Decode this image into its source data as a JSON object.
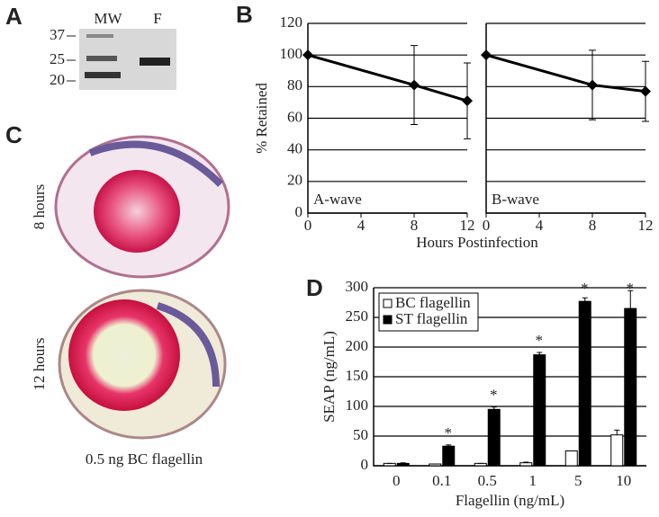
{
  "panel_labels": [
    "A",
    "B",
    "C",
    "D"
  ],
  "gel": {
    "lanes": [
      "MW",
      "F"
    ],
    "markers": [
      "37",
      "25",
      "20"
    ]
  },
  "histology": {
    "labels": [
      "8 hours",
      "12 hours"
    ],
    "caption": "0.5 ng BC flagellin"
  },
  "chart_data": [
    {
      "type": "line",
      "ylabel": "% Retained",
      "xlabel": "Hours Postinfection",
      "annotation": "A-wave",
      "x": [
        0,
        8,
        12
      ],
      "xlim": [
        0,
        12
      ],
      "xticks": [
        0,
        4,
        8,
        12
      ],
      "ylim": [
        0,
        120
      ],
      "yticks": [
        0,
        20,
        40,
        60,
        80,
        100,
        120
      ],
      "grid": true,
      "series": [
        {
          "name": "A-wave",
          "color": "#000000",
          "values": [
            100,
            81,
            71
          ],
          "errors": [
            null,
            25,
            24
          ]
        }
      ]
    },
    {
      "type": "line",
      "annotation": "B-wave",
      "x": [
        0,
        8,
        12
      ],
      "xlim": [
        0,
        12
      ],
      "xticks": [
        0,
        4,
        8,
        12
      ],
      "ylim": [
        0,
        120
      ],
      "yticks": [
        0,
        20,
        40,
        60,
        80,
        100,
        120
      ],
      "grid": true,
      "series": [
        {
          "name": "B-wave",
          "color": "#000000",
          "values": [
            100,
            81,
            77
          ],
          "errors": [
            null,
            22,
            19
          ]
        }
      ]
    },
    {
      "type": "bar",
      "ylabel": "SEAP (ng/mL)",
      "xlabel": "Flagellin (ng/mL)",
      "categories": [
        "0",
        "0.1",
        "0.5",
        "1",
        "5",
        "10"
      ],
      "ylim": [
        0,
        300
      ],
      "yticks": [
        0,
        50,
        100,
        150,
        200,
        250,
        300
      ],
      "grid": true,
      "legend": "top-left",
      "significance_labels": [
        null,
        "*",
        "*",
        "*",
        "*",
        "*"
      ],
      "series": [
        {
          "name": "BC flagellin",
          "color": "#ffffff",
          "values": [
            4,
            3,
            4,
            5,
            25,
            52
          ],
          "errors": [
            0,
            0,
            0,
            1,
            0,
            8
          ]
        },
        {
          "name": "ST flagellin",
          "color": "#000000",
          "values": [
            4,
            33,
            95,
            187,
            277,
            265
          ],
          "errors": [
            1,
            2,
            4,
            4,
            6,
            30
          ]
        }
      ]
    }
  ]
}
